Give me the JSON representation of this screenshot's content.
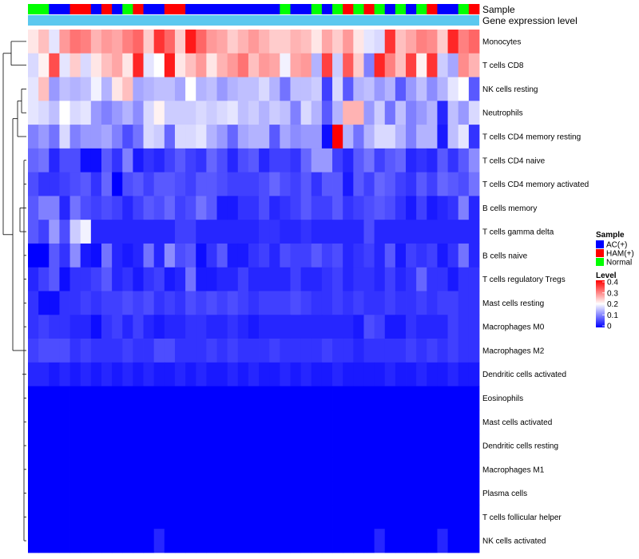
{
  "chart_data": {
    "type": "heatmap",
    "title": "",
    "annotation_tracks": [
      {
        "name": "Sample"
      },
      {
        "name": "Gene expression level",
        "color": "#5bc8ef"
      }
    ],
    "sample_groups": [
      {
        "label": "AC(+)",
        "color": "#0000ff"
      },
      {
        "label": "HAM(+)",
        "color": "#ff0000"
      },
      {
        "label": "Normal",
        "color": "#00ff00"
      }
    ],
    "sample_track_codes": [
      "N",
      "N",
      "A",
      "A",
      "H",
      "H",
      "A",
      "H",
      "A",
      "N",
      "H",
      "A",
      "A",
      "H",
      "H",
      "A",
      "A",
      "A",
      "A",
      "A",
      "A",
      "A",
      "A",
      "A",
      "N",
      "A",
      "A",
      "N",
      "A",
      "N",
      "H",
      "N",
      "H",
      "N",
      "A",
      "N",
      "A",
      "N",
      "H",
      "A",
      "A",
      "N",
      "H"
    ],
    "sample_legend_title": "Sample",
    "level_legend": {
      "title": "Level",
      "ticks": [
        "0.4",
        "0.3",
        "0.2",
        "0.1",
        "0"
      ],
      "min": 0,
      "max": 0.4,
      "colors": {
        "low": "#0000ff",
        "mid": "#ffffff",
        "high": "#ff0000"
      }
    },
    "rows": [
      {
        "label": "Monocytes",
        "values": [
          0.22,
          0.25,
          0.18,
          0.28,
          0.31,
          0.3,
          0.26,
          0.28,
          0.27,
          0.3,
          0.32,
          0.24,
          0.36,
          0.32,
          0.24,
          0.38,
          0.32,
          0.28,
          0.27,
          0.24,
          0.26,
          0.28,
          0.26,
          0.24,
          0.24,
          0.26,
          0.25,
          0.22,
          0.27,
          0.24,
          0.28,
          0.22,
          0.18,
          0.17,
          0.36,
          0.25,
          0.27,
          0.3,
          0.29,
          0.24,
          0.37,
          0.3,
          0.32
        ]
      },
      {
        "label": "T cells CD8",
        "values": [
          0.17,
          0.21,
          0.34,
          0.18,
          0.24,
          0.17,
          0.22,
          0.25,
          0.27,
          0.22,
          0.37,
          0.18,
          0.2,
          0.38,
          0.22,
          0.25,
          0.28,
          0.22,
          0.26,
          0.28,
          0.31,
          0.25,
          0.28,
          0.27,
          0.19,
          0.27,
          0.28,
          0.14,
          0.35,
          0.16,
          0.33,
          0.24,
          0.1,
          0.37,
          0.3,
          0.25,
          0.35,
          0.21,
          0.36,
          0.16,
          0.13,
          0.29,
          0.26
        ]
      },
      {
        "label": "NK cells resting",
        "values": [
          0.18,
          0.25,
          0.12,
          0.15,
          0.14,
          0.15,
          0.19,
          0.14,
          0.22,
          0.25,
          0.13,
          0.14,
          0.15,
          0.15,
          0.13,
          0.2,
          0.14,
          0.15,
          0.12,
          0.14,
          0.15,
          0.15,
          0.17,
          0.14,
          0.09,
          0.15,
          0.15,
          0.16,
          0.05,
          0.17,
          0.07,
          0.14,
          0.15,
          0.12,
          0.14,
          0.07,
          0.12,
          0.15,
          0.11,
          0.14,
          0.18,
          0.2,
          0.07
        ]
      },
      {
        "label": "Neutrophils",
        "values": [
          0.18,
          0.17,
          0.15,
          0.2,
          0.17,
          0.18,
          0.12,
          0.1,
          0.12,
          0.14,
          0.11,
          0.17,
          0.21,
          0.16,
          0.16,
          0.16,
          0.17,
          0.16,
          0.17,
          0.18,
          0.15,
          0.16,
          0.14,
          0.16,
          0.15,
          0.1,
          0.17,
          0.14,
          0.07,
          0.14,
          0.26,
          0.26,
          0.12,
          0.16,
          0.09,
          0.15,
          0.1,
          0.12,
          0.14,
          0.03,
          0.15,
          0.12,
          0.17
        ]
      },
      {
        "label": "T cells CD4 memory resting",
        "values": [
          0.1,
          0.12,
          0.09,
          0.17,
          0.1,
          0.12,
          0.12,
          0.13,
          0.1,
          0.06,
          0.09,
          0.17,
          0.16,
          0.08,
          0.17,
          0.17,
          0.18,
          0.14,
          0.12,
          0.08,
          0.13,
          0.14,
          0.14,
          0.07,
          0.13,
          0.11,
          0.12,
          0.12,
          0.01,
          0.4,
          0.14,
          0.09,
          0.14,
          0.17,
          0.17,
          0.14,
          0.1,
          0.14,
          0.14,
          0.02,
          0.15,
          0.18,
          0.04
        ]
      },
      {
        "label": "T cells CD4 naive",
        "values": [
          0.08,
          0.09,
          0.03,
          0.06,
          0.06,
          0.01,
          0.01,
          0.07,
          0.04,
          0.1,
          0.02,
          0.04,
          0.03,
          0.05,
          0.07,
          0.05,
          0.04,
          0.08,
          0.06,
          0.03,
          0.06,
          0.07,
          0.03,
          0.05,
          0.05,
          0.04,
          0.08,
          0.12,
          0.12,
          0.05,
          0.03,
          0.07,
          0.09,
          0.05,
          0.07,
          0.08,
          0.03,
          0.04,
          0.03,
          0.07,
          0.04,
          0.07,
          0.11
        ]
      },
      {
        "label": "T cells CD4 memory activated",
        "values": [
          0.06,
          0.04,
          0.04,
          0.05,
          0.06,
          0.07,
          0.04,
          0.08,
          0.0,
          0.06,
          0.07,
          0.05,
          0.07,
          0.07,
          0.06,
          0.05,
          0.07,
          0.07,
          0.06,
          0.05,
          0.05,
          0.05,
          0.06,
          0.08,
          0.06,
          0.05,
          0.07,
          0.04,
          0.07,
          0.07,
          0.02,
          0.07,
          0.05,
          0.08,
          0.07,
          0.05,
          0.04,
          0.07,
          0.05,
          0.08,
          0.07,
          0.06,
          0.09
        ]
      },
      {
        "label": "B cells memory",
        "values": [
          0.07,
          0.1,
          0.1,
          0.03,
          0.09,
          0.06,
          0.05,
          0.06,
          0.05,
          0.03,
          0.05,
          0.07,
          0.06,
          0.08,
          0.05,
          0.06,
          0.09,
          0.07,
          0.02,
          0.02,
          0.04,
          0.04,
          0.06,
          0.03,
          0.04,
          0.05,
          0.07,
          0.05,
          0.05,
          0.07,
          0.04,
          0.05,
          0.06,
          0.07,
          0.06,
          0.04,
          0.02,
          0.05,
          0.02,
          0.03,
          0.04,
          0.1,
          0.03
        ]
      },
      {
        "label": "T cells gamma delta",
        "values": [
          0.07,
          0.05,
          0.12,
          0.06,
          0.16,
          0.19,
          0.03,
          0.03,
          0.03,
          0.03,
          0.03,
          0.03,
          0.03,
          0.03,
          0.05,
          0.05,
          0.03,
          0.03,
          0.03,
          0.03,
          0.03,
          0.03,
          0.04,
          0.04,
          0.03,
          0.03,
          0.04,
          0.03,
          0.03,
          0.03,
          0.03,
          0.03,
          0.06,
          0.03,
          0.03,
          0.03,
          0.03,
          0.03,
          0.03,
          0.03,
          0.03,
          0.03,
          0.03
        ]
      },
      {
        "label": "B cells naive",
        "values": [
          0.0,
          0.0,
          0.07,
          0.04,
          0.11,
          0.02,
          0.01,
          0.09,
          0.03,
          0.02,
          0.03,
          0.09,
          0.03,
          0.11,
          0.06,
          0.07,
          0.01,
          0.04,
          0.07,
          0.02,
          0.02,
          0.04,
          0.05,
          0.03,
          0.06,
          0.05,
          0.05,
          0.07,
          0.05,
          0.06,
          0.03,
          0.04,
          0.05,
          0.03,
          0.07,
          0.02,
          0.05,
          0.04,
          0.05,
          0.02,
          0.04,
          0.09,
          0.03
        ]
      },
      {
        "label": "T cells regulatory  Tregs",
        "values": [
          0.03,
          0.05,
          0.07,
          0.01,
          0.04,
          0.04,
          0.05,
          0.07,
          0.03,
          0.04,
          0.02,
          0.04,
          0.05,
          0.02,
          0.03,
          0.09,
          0.02,
          0.02,
          0.03,
          0.03,
          0.05,
          0.03,
          0.03,
          0.03,
          0.03,
          0.05,
          0.03,
          0.03,
          0.04,
          0.05,
          0.03,
          0.04,
          0.04,
          0.03,
          0.05,
          0.03,
          0.04,
          0.08,
          0.04,
          0.04,
          0.02,
          0.04,
          0.04
        ]
      },
      {
        "label": "Mast cells resting",
        "values": [
          0.04,
          0.01,
          0.01,
          0.04,
          0.04,
          0.05,
          0.04,
          0.05,
          0.05,
          0.06,
          0.05,
          0.06,
          0.04,
          0.05,
          0.04,
          0.06,
          0.05,
          0.06,
          0.05,
          0.06,
          0.05,
          0.04,
          0.05,
          0.05,
          0.05,
          0.06,
          0.05,
          0.04,
          0.04,
          0.05,
          0.04,
          0.05,
          0.04,
          0.04,
          0.05,
          0.04,
          0.04,
          0.05,
          0.04,
          0.05,
          0.05,
          0.04,
          0.04
        ]
      },
      {
        "label": "Macrophages M0",
        "values": [
          0.04,
          0.05,
          0.04,
          0.04,
          0.03,
          0.03,
          0.01,
          0.04,
          0.05,
          0.03,
          0.05,
          0.03,
          0.02,
          0.03,
          0.03,
          0.04,
          0.04,
          0.03,
          0.03,
          0.04,
          0.03,
          0.02,
          0.03,
          0.03,
          0.03,
          0.03,
          0.03,
          0.03,
          0.03,
          0.03,
          0.03,
          0.02,
          0.06,
          0.05,
          0.02,
          0.02,
          0.04,
          0.03,
          0.03,
          0.03,
          0.05,
          0.04,
          0.04
        ]
      },
      {
        "label": "Macrophages M2",
        "values": [
          0.05,
          0.06,
          0.06,
          0.06,
          0.04,
          0.05,
          0.04,
          0.04,
          0.04,
          0.05,
          0.04,
          0.04,
          0.06,
          0.06,
          0.04,
          0.04,
          0.04,
          0.05,
          0.04,
          0.05,
          0.04,
          0.04,
          0.04,
          0.05,
          0.04,
          0.04,
          0.04,
          0.04,
          0.05,
          0.04,
          0.04,
          0.03,
          0.04,
          0.04,
          0.04,
          0.04,
          0.05,
          0.04,
          0.05,
          0.04,
          0.05,
          0.04,
          0.04
        ]
      },
      {
        "label": "Dendritic cells activated",
        "values": [
          0.03,
          0.03,
          0.02,
          0.03,
          0.02,
          0.03,
          0.02,
          0.03,
          0.02,
          0.03,
          0.02,
          0.03,
          0.02,
          0.02,
          0.03,
          0.02,
          0.03,
          0.02,
          0.02,
          0.03,
          0.02,
          0.03,
          0.02,
          0.02,
          0.03,
          0.02,
          0.03,
          0.02,
          0.02,
          0.03,
          0.02,
          0.02,
          0.02,
          0.02,
          0.03,
          0.02,
          0.02,
          0.03,
          0.02,
          0.02,
          0.03,
          0.02,
          0.02
        ]
      },
      {
        "label": "Eosinophils",
        "values": [
          0,
          0,
          0,
          0,
          0,
          0,
          0,
          0,
          0,
          0,
          0,
          0,
          0,
          0,
          0,
          0,
          0,
          0,
          0,
          0,
          0,
          0,
          0,
          0,
          0,
          0,
          0,
          0,
          0,
          0,
          0,
          0,
          0,
          0,
          0,
          0,
          0,
          0,
          0,
          0,
          0,
          0,
          0
        ]
      },
      {
        "label": "Mast cells activated",
        "values": [
          0,
          0,
          0,
          0,
          0,
          0,
          0,
          0,
          0,
          0,
          0,
          0,
          0,
          0,
          0,
          0,
          0,
          0,
          0,
          0,
          0,
          0,
          0,
          0,
          0,
          0,
          0,
          0,
          0,
          0,
          0,
          0,
          0,
          0,
          0,
          0,
          0,
          0,
          0,
          0,
          0,
          0,
          0
        ]
      },
      {
        "label": "Dendritic cells resting",
        "values": [
          0,
          0,
          0,
          0,
          0,
          0,
          0,
          0,
          0,
          0,
          0,
          0,
          0,
          0,
          0,
          0,
          0,
          0,
          0,
          0,
          0,
          0,
          0,
          0,
          0,
          0,
          0,
          0,
          0,
          0,
          0,
          0,
          0,
          0,
          0,
          0,
          0,
          0,
          0,
          0,
          0,
          0,
          0
        ]
      },
      {
        "label": "Macrophages M1",
        "values": [
          0,
          0,
          0,
          0,
          0,
          0,
          0,
          0,
          0,
          0,
          0,
          0,
          0,
          0,
          0,
          0,
          0,
          0,
          0,
          0,
          0,
          0,
          0,
          0,
          0,
          0,
          0,
          0,
          0,
          0,
          0,
          0,
          0,
          0,
          0,
          0,
          0,
          0,
          0,
          0,
          0,
          0,
          0
        ]
      },
      {
        "label": "Plasma cells",
        "values": [
          0,
          0,
          0,
          0,
          0,
          0,
          0,
          0,
          0,
          0,
          0,
          0,
          0,
          0,
          0,
          0,
          0,
          0,
          0,
          0,
          0,
          0,
          0,
          0,
          0,
          0,
          0,
          0,
          0,
          0,
          0,
          0,
          0,
          0,
          0,
          0,
          0,
          0,
          0,
          0,
          0,
          0,
          0
        ]
      },
      {
        "label": "T cells follicular helper",
        "values": [
          0,
          0,
          0,
          0,
          0,
          0,
          0,
          0,
          0,
          0,
          0,
          0,
          0,
          0,
          0,
          0,
          0,
          0,
          0,
          0,
          0,
          0,
          0,
          0,
          0,
          0,
          0,
          0,
          0,
          0,
          0,
          0,
          0,
          0,
          0,
          0,
          0,
          0,
          0,
          0,
          0,
          0,
          0
        ]
      },
      {
        "label": "NK cells activated",
        "values": [
          0,
          0,
          0,
          0,
          0,
          0,
          0,
          0,
          0,
          0,
          0,
          0,
          0.03,
          0,
          0,
          0,
          0,
          0,
          0,
          0,
          0,
          0,
          0,
          0,
          0,
          0,
          0,
          0,
          0,
          0,
          0,
          0,
          0,
          0.03,
          0,
          0,
          0,
          0,
          0,
          0.03,
          0,
          0,
          0
        ]
      }
    ]
  }
}
